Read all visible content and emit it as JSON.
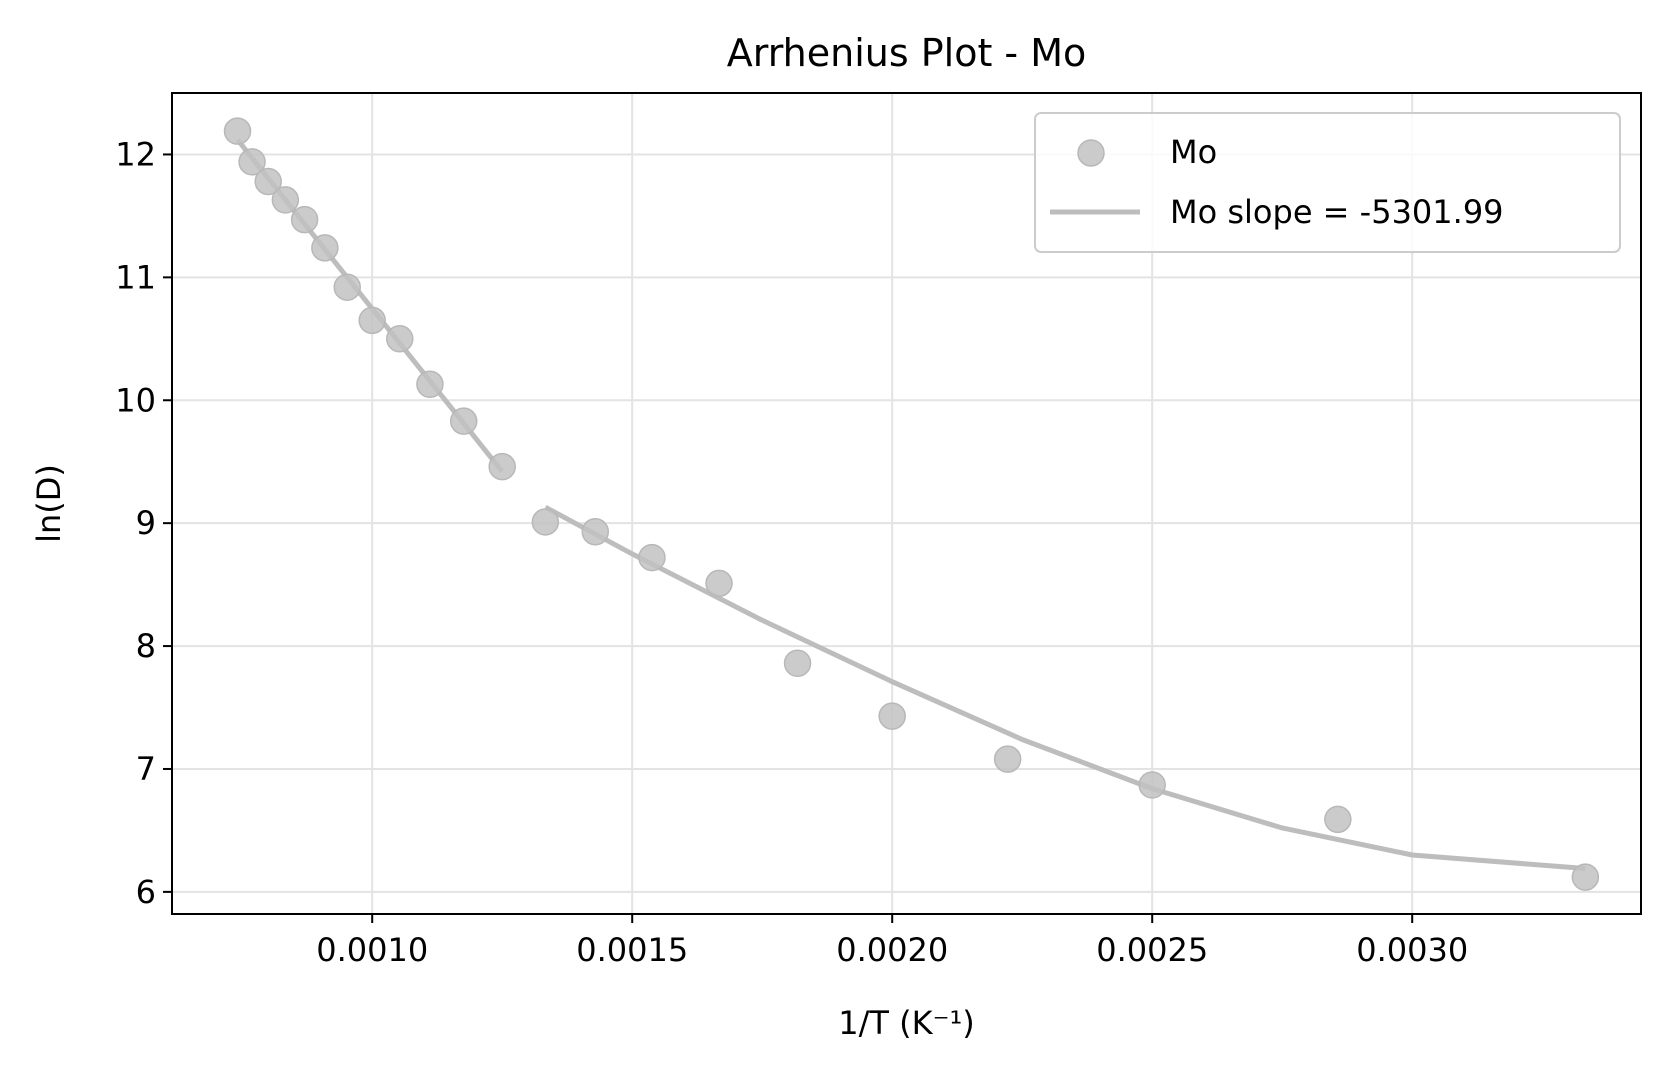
{
  "chart_data": {
    "type": "scatter",
    "title": "Arrhenius Plot - Mo",
    "xlabel": "1/T (K⁻¹)",
    "ylabel": "ln(D)",
    "xlim": [
      0.000615,
      0.00344
    ],
    "ylim": [
      5.82,
      12.5
    ],
    "xticks": [
      {
        "value": 0.001,
        "label": "0.0010"
      },
      {
        "value": 0.0015,
        "label": "0.0015"
      },
      {
        "value": 0.002,
        "label": "0.0020"
      },
      {
        "value": 0.0025,
        "label": "0.0025"
      },
      {
        "value": 0.003,
        "label": "0.0030"
      }
    ],
    "yticks": [
      {
        "value": 6,
        "label": "6"
      },
      {
        "value": 7,
        "label": "7"
      },
      {
        "value": 8,
        "label": "8"
      },
      {
        "value": 9,
        "label": "9"
      },
      {
        "value": 10,
        "label": "10"
      },
      {
        "value": 11,
        "label": "11"
      },
      {
        "value": 12,
        "label": "12"
      }
    ],
    "grid": true,
    "legend_position": "top-right",
    "colors": {
      "points": "#c2c2c2",
      "line": "#bdbdbd"
    },
    "series": [
      {
        "name": "Mo",
        "kind": "scatter",
        "x": [
          0.000741,
          0.000769,
          0.0008,
          0.000833,
          0.00087,
          0.000909,
          0.000952,
          0.001,
          0.001053,
          0.001111,
          0.001176,
          0.00125,
          0.001333,
          0.001429,
          0.001538,
          0.001667,
          0.001818,
          0.002,
          0.002222,
          0.0025,
          0.002857,
          0.003333
        ],
        "y": [
          12.19,
          11.94,
          11.78,
          11.63,
          11.47,
          11.24,
          10.92,
          10.65,
          10.5,
          10.13,
          9.83,
          9.46,
          9.01,
          8.93,
          8.72,
          8.51,
          7.86,
          7.43,
          7.08,
          6.87,
          6.59,
          6.12
        ]
      },
      {
        "name": "Mo slope = -5301.99",
        "kind": "line",
        "segments": [
          {
            "x": [
              0.000741,
              0.00085,
              0.00095,
              0.00105,
              0.00115,
              0.00125
            ],
            "y": [
              12.12,
              11.54,
              11.01,
              10.48,
              9.95,
              9.42
            ]
          },
          {
            "x": [
              0.001333,
              0.0015,
              0.00175,
              0.002,
              0.00225,
              0.0025,
              0.00275,
              0.003,
              0.003333
            ],
            "y": [
              9.13,
              8.75,
              8.21,
              7.71,
              7.24,
              6.84,
              6.52,
              6.3,
              6.19
            ]
          }
        ]
      }
    ]
  }
}
